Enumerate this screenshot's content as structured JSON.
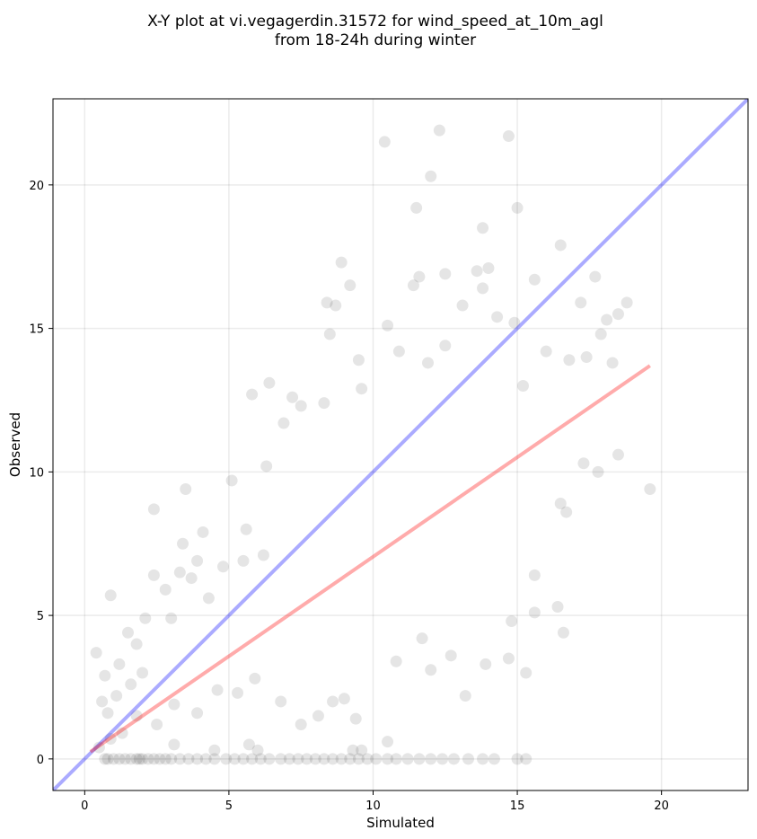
{
  "chart_data": {
    "type": "scatter",
    "title": "X-Y plot at vi.vegagerdin.31572 for wind_speed_at_10m_agl",
    "subtitle": "from 18-24h during winter",
    "xlabel": "Simulated",
    "ylabel": "Observed",
    "xlim": [
      -1.1,
      23.0
    ],
    "ylim": [
      -1.1,
      23.0
    ],
    "xticks": [
      0,
      5,
      10,
      15,
      20
    ],
    "yticks": [
      0,
      5,
      10,
      15,
      20
    ],
    "grid": true,
    "point_color": "#000000",
    "point_opacity": 0.1,
    "reference_line": {
      "x": [
        -1.1,
        23.0
      ],
      "y": [
        -1.1,
        23.0
      ],
      "color": "#0000ff"
    },
    "fit_line": {
      "x": [
        0.2,
        19.6
      ],
      "y": [
        0.25,
        13.7
      ],
      "color": "#ff0000"
    },
    "points": [
      [
        0.4,
        3.7
      ],
      [
        0.6,
        2.0
      ],
      [
        0.9,
        5.7
      ],
      [
        1.2,
        3.3
      ],
      [
        0.7,
        2.9
      ],
      [
        1.5,
        4.4
      ],
      [
        1.8,
        4.0
      ],
      [
        2.1,
        4.9
      ],
      [
        2.4,
        8.7
      ],
      [
        2.4,
        6.4
      ],
      [
        2.8,
        5.9
      ],
      [
        3.0,
        4.9
      ],
      [
        3.3,
        6.5
      ],
      [
        3.4,
        7.5
      ],
      [
        3.5,
        9.4
      ],
      [
        3.7,
        6.3
      ],
      [
        3.9,
        6.9
      ],
      [
        4.1,
        7.9
      ],
      [
        4.3,
        5.6
      ],
      [
        4.8,
        6.7
      ],
      [
        5.1,
        9.7
      ],
      [
        5.5,
        6.9
      ],
      [
        5.6,
        8.0
      ],
      [
        5.8,
        12.7
      ],
      [
        6.2,
        7.1
      ],
      [
        6.3,
        10.2
      ],
      [
        6.4,
        13.1
      ],
      [
        6.9,
        11.7
      ],
      [
        7.2,
        12.6
      ],
      [
        7.5,
        12.3
      ],
      [
        8.3,
        12.4
      ],
      [
        8.4,
        15.9
      ],
      [
        8.5,
        14.8
      ],
      [
        8.7,
        15.8
      ],
      [
        8.9,
        17.3
      ],
      [
        9.2,
        16.5
      ],
      [
        9.5,
        13.9
      ],
      [
        9.6,
        12.9
      ],
      [
        10.4,
        21.5
      ],
      [
        10.5,
        15.1
      ],
      [
        10.9,
        14.2
      ],
      [
        11.4,
        16.5
      ],
      [
        11.5,
        19.2
      ],
      [
        11.6,
        16.8
      ],
      [
        11.9,
        13.8
      ],
      [
        12.0,
        20.3
      ],
      [
        12.3,
        21.9
      ],
      [
        12.5,
        16.9
      ],
      [
        12.5,
        14.4
      ],
      [
        13.1,
        15.8
      ],
      [
        13.6,
        17.0
      ],
      [
        13.8,
        18.5
      ],
      [
        13.8,
        16.4
      ],
      [
        14.0,
        17.1
      ],
      [
        14.3,
        15.4
      ],
      [
        14.7,
        21.7
      ],
      [
        14.9,
        15.2
      ],
      [
        15.0,
        19.2
      ],
      [
        15.2,
        13.0
      ],
      [
        15.6,
        16.7
      ],
      [
        16.0,
        14.2
      ],
      [
        16.5,
        17.9
      ],
      [
        16.8,
        13.9
      ],
      [
        17.2,
        15.9
      ],
      [
        17.4,
        14.0
      ],
      [
        17.7,
        16.8
      ],
      [
        18.1,
        15.3
      ],
      [
        18.5,
        15.5
      ],
      [
        18.8,
        15.9
      ],
      [
        17.9,
        14.8
      ],
      [
        18.3,
        13.8
      ],
      [
        18.5,
        10.6
      ],
      [
        17.8,
        10.0
      ],
      [
        17.3,
        10.3
      ],
      [
        16.5,
        8.9
      ],
      [
        16.7,
        8.6
      ],
      [
        16.6,
        4.4
      ],
      [
        16.4,
        5.3
      ],
      [
        15.6,
        6.4
      ],
      [
        15.6,
        5.1
      ],
      [
        15.3,
        3.0
      ],
      [
        14.8,
        4.8
      ],
      [
        14.7,
        3.5
      ],
      [
        13.9,
        3.3
      ],
      [
        13.2,
        2.2
      ],
      [
        12.7,
        3.6
      ],
      [
        12.0,
        3.1
      ],
      [
        11.7,
        4.2
      ],
      [
        10.8,
        3.4
      ],
      [
        10.5,
        0.6
      ],
      [
        9.4,
        1.4
      ],
      [
        9.0,
        2.1
      ],
      [
        8.6,
        2.0
      ],
      [
        8.1,
        1.5
      ],
      [
        7.5,
        1.2
      ],
      [
        6.8,
        2.0
      ],
      [
        5.9,
        2.8
      ],
      [
        5.3,
        2.3
      ],
      [
        4.6,
        2.4
      ],
      [
        3.9,
        1.6
      ],
      [
        3.1,
        1.9
      ],
      [
        2.5,
        1.2
      ],
      [
        1.8,
        1.5
      ],
      [
        1.3,
        0.9
      ],
      [
        0.9,
        0.7
      ],
      [
        0.5,
        0.4
      ],
      [
        0.8,
        1.6
      ],
      [
        1.1,
        2.2
      ],
      [
        1.6,
        2.6
      ],
      [
        2.0,
        3.0
      ],
      [
        19.6,
        9.4
      ],
      [
        0.7,
        0.0
      ],
      [
        0.8,
        0.0
      ],
      [
        1.0,
        0.0
      ],
      [
        1.2,
        0.0
      ],
      [
        1.4,
        0.0
      ],
      [
        1.6,
        0.0
      ],
      [
        1.8,
        0.0
      ],
      [
        1.9,
        0.0
      ],
      [
        2.0,
        0.0
      ],
      [
        2.2,
        0.0
      ],
      [
        2.4,
        0.0
      ],
      [
        2.6,
        0.0
      ],
      [
        2.8,
        0.0
      ],
      [
        3.0,
        0.0
      ],
      [
        3.3,
        0.0
      ],
      [
        3.6,
        0.0
      ],
      [
        3.9,
        0.0
      ],
      [
        4.2,
        0.0
      ],
      [
        4.5,
        0.0
      ],
      [
        4.9,
        0.0
      ],
      [
        5.2,
        0.0
      ],
      [
        5.5,
        0.0
      ],
      [
        5.8,
        0.0
      ],
      [
        6.1,
        0.0
      ],
      [
        6.4,
        0.0
      ],
      [
        6.8,
        0.0
      ],
      [
        7.1,
        0.0
      ],
      [
        7.4,
        0.0
      ],
      [
        7.7,
        0.0
      ],
      [
        8.0,
        0.0
      ],
      [
        8.3,
        0.0
      ],
      [
        8.6,
        0.0
      ],
      [
        8.9,
        0.0
      ],
      [
        9.2,
        0.0
      ],
      [
        9.5,
        0.0
      ],
      [
        9.8,
        0.0
      ],
      [
        10.1,
        0.0
      ],
      [
        10.5,
        0.0
      ],
      [
        10.8,
        0.0
      ],
      [
        11.2,
        0.0
      ],
      [
        11.6,
        0.0
      ],
      [
        12.0,
        0.0
      ],
      [
        12.4,
        0.0
      ],
      [
        12.8,
        0.0
      ],
      [
        13.3,
        0.0
      ],
      [
        13.8,
        0.0
      ],
      [
        14.2,
        0.0
      ],
      [
        15.0,
        0.0
      ],
      [
        15.3,
        0.0
      ],
      [
        9.3,
        0.3
      ],
      [
        9.6,
        0.3
      ],
      [
        4.5,
        0.3
      ],
      [
        6.0,
        0.3
      ],
      [
        3.1,
        0.5
      ],
      [
        5.7,
        0.5
      ]
    ]
  }
}
